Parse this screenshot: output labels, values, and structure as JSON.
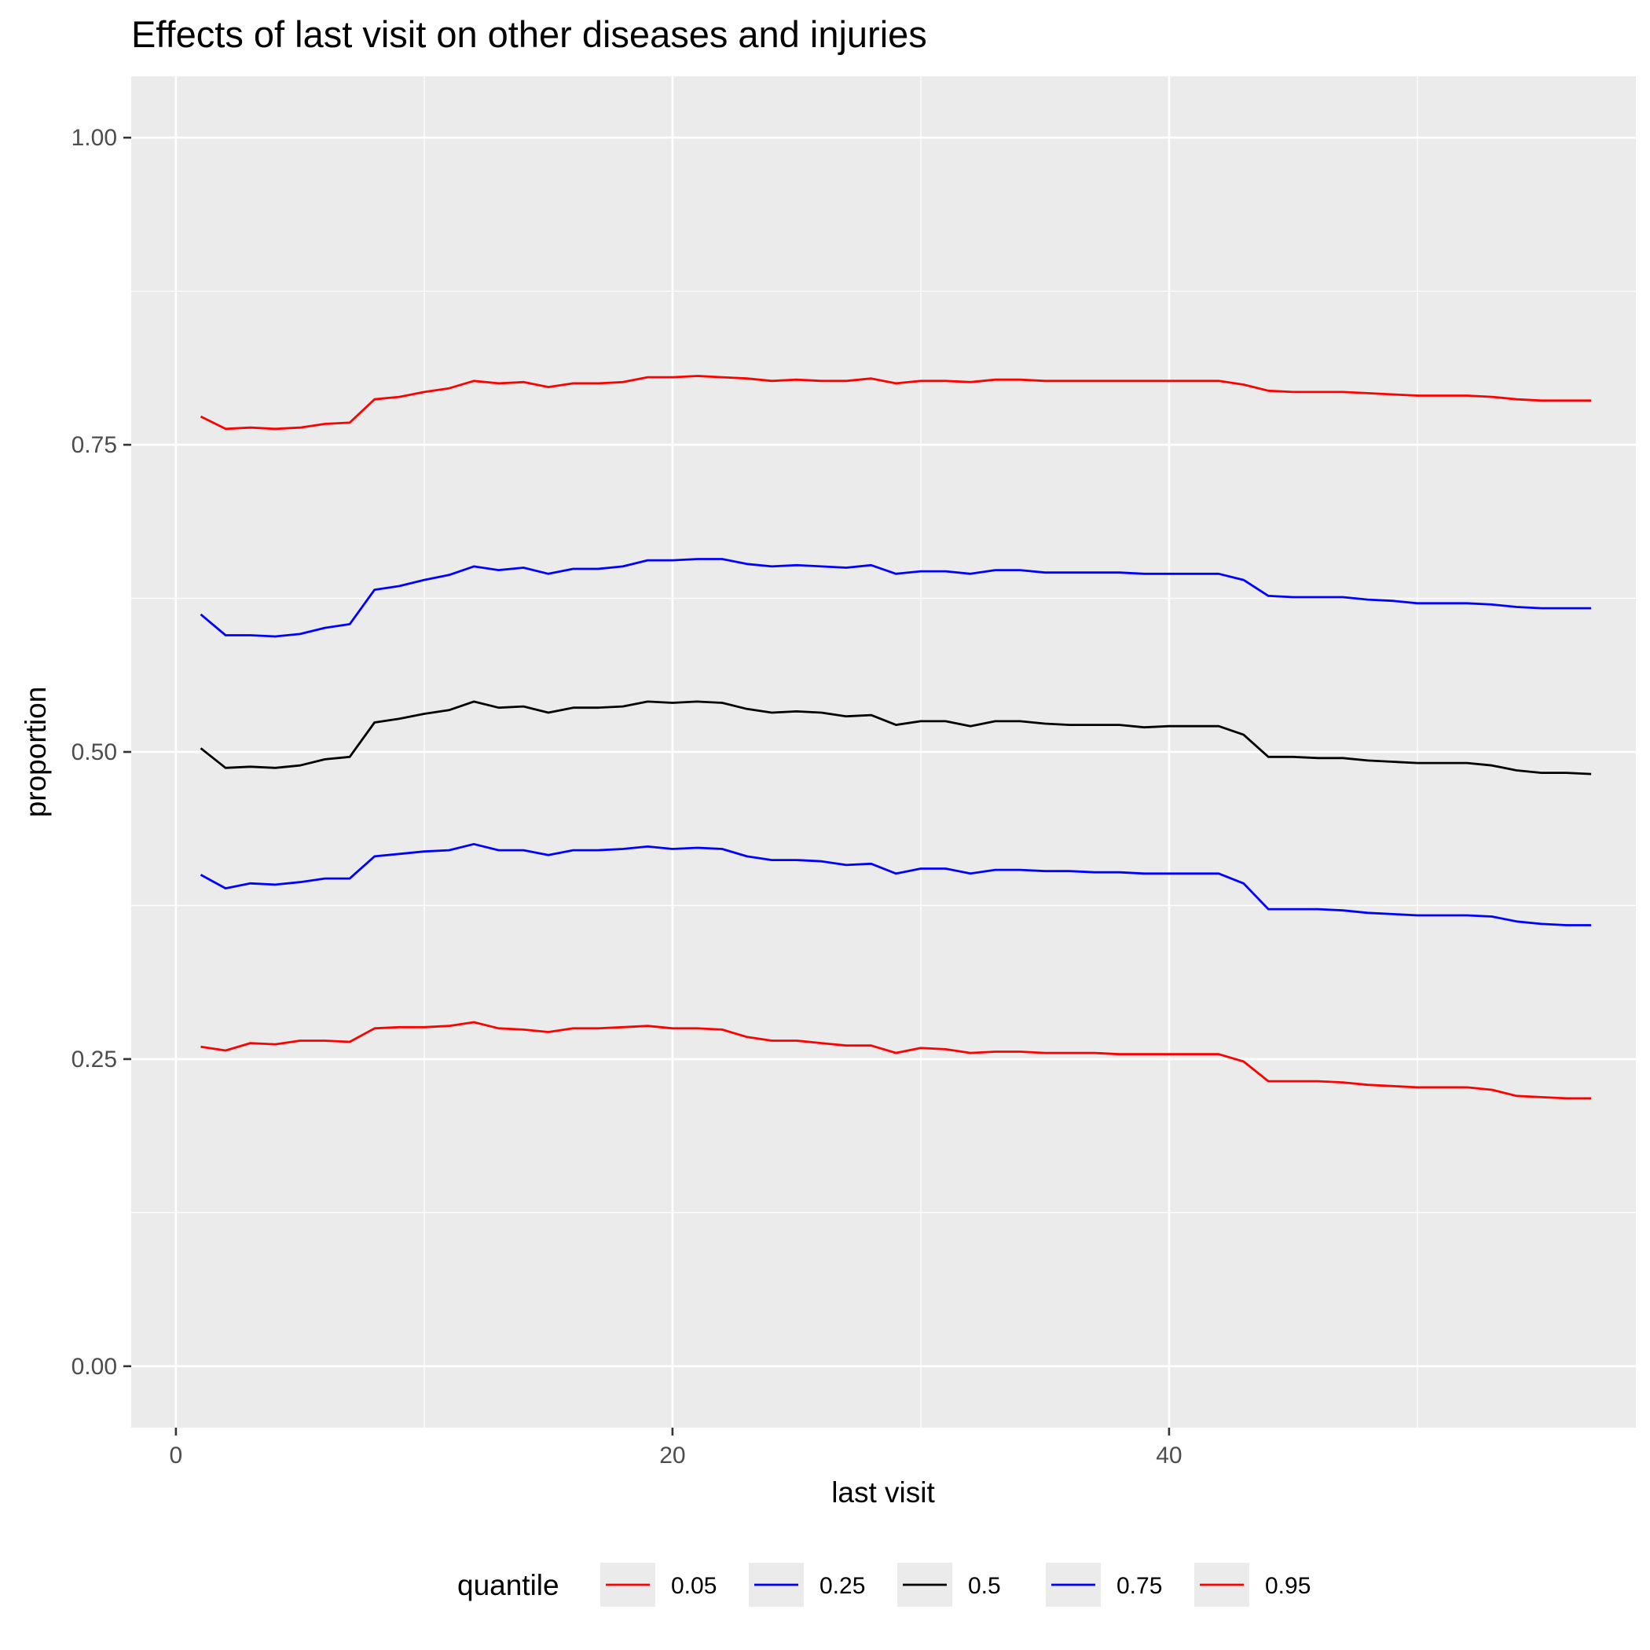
{
  "chart_data": {
    "type": "line",
    "title": "Effects of last visit on other diseases and injuries",
    "xlabel": "last visit",
    "ylabel": "proportion",
    "xlim": [
      -1.8,
      58.8
    ],
    "ylim": [
      -0.05,
      1.05
    ],
    "x_ticks": [
      0,
      20,
      40
    ],
    "x_tick_labels": [
      "0",
      "20",
      "40"
    ],
    "x_minor_ticks": [
      10,
      30,
      50
    ],
    "y_ticks": [
      0,
      0.25,
      0.5,
      0.75,
      1.0
    ],
    "y_tick_labels": [
      "0.00",
      "0.25",
      "0.50",
      "0.75",
      "1.00"
    ],
    "y_minor_ticks": [
      0.125,
      0.375,
      0.625,
      0.875
    ],
    "grid": true,
    "legend": {
      "title": "quantile",
      "position": "bottom"
    },
    "x": [
      1,
      2,
      3,
      4,
      5,
      6,
      7,
      8,
      9,
      10,
      11,
      12,
      13,
      14,
      15,
      16,
      17,
      18,
      19,
      20,
      21,
      22,
      23,
      24,
      25,
      26,
      27,
      28,
      29,
      30,
      31,
      32,
      33,
      34,
      35,
      36,
      37,
      38,
      39,
      40,
      41,
      42,
      43,
      44,
      45,
      46,
      47,
      48,
      49,
      50,
      51,
      52,
      53,
      54,
      55,
      56,
      57
    ],
    "series": [
      {
        "name": "0.05",
        "color": "#ff0000",
        "values": [
          0.26,
          0.257,
          0.263,
          0.262,
          0.265,
          0.265,
          0.264,
          0.275,
          0.276,
          0.276,
          0.277,
          0.28,
          0.275,
          0.274,
          0.272,
          0.275,
          0.275,
          0.276,
          0.277,
          0.275,
          0.275,
          0.274,
          0.268,
          0.265,
          0.265,
          0.263,
          0.261,
          0.261,
          0.255,
          0.259,
          0.258,
          0.255,
          0.256,
          0.256,
          0.255,
          0.255,
          0.255,
          0.254,
          0.254,
          0.254,
          0.254,
          0.254,
          0.248,
          0.232,
          0.232,
          0.232,
          0.231,
          0.229,
          0.228,
          0.227,
          0.227,
          0.227,
          0.225,
          0.22,
          0.219,
          0.218,
          0.218
        ]
      },
      {
        "name": "0.25",
        "color": "#0000ff",
        "values": [
          0.4,
          0.389,
          0.393,
          0.392,
          0.394,
          0.397,
          0.397,
          0.415,
          0.417,
          0.419,
          0.42,
          0.425,
          0.42,
          0.42,
          0.416,
          0.42,
          0.42,
          0.421,
          0.423,
          0.421,
          0.422,
          0.421,
          0.415,
          0.412,
          0.412,
          0.411,
          0.408,
          0.409,
          0.401,
          0.405,
          0.405,
          0.401,
          0.404,
          0.404,
          0.403,
          0.403,
          0.402,
          0.402,
          0.401,
          0.401,
          0.401,
          0.401,
          0.393,
          0.372,
          0.372,
          0.372,
          0.371,
          0.369,
          0.368,
          0.367,
          0.367,
          0.367,
          0.366,
          0.362,
          0.36,
          0.359,
          0.359
        ]
      },
      {
        "name": "0.5",
        "color": "#000000",
        "values": [
          0.503,
          0.487,
          0.488,
          0.487,
          0.489,
          0.494,
          0.496,
          0.524,
          0.527,
          0.531,
          0.534,
          0.541,
          0.536,
          0.537,
          0.532,
          0.536,
          0.536,
          0.537,
          0.541,
          0.54,
          0.541,
          0.54,
          0.535,
          0.532,
          0.533,
          0.532,
          0.529,
          0.53,
          0.522,
          0.525,
          0.525,
          0.521,
          0.525,
          0.525,
          0.523,
          0.522,
          0.522,
          0.522,
          0.52,
          0.521,
          0.521,
          0.521,
          0.514,
          0.496,
          0.496,
          0.495,
          0.495,
          0.493,
          0.492,
          0.491,
          0.491,
          0.491,
          0.489,
          0.485,
          0.483,
          0.483,
          0.482
        ]
      },
      {
        "name": "0.75",
        "color": "#0000ff",
        "values": [
          0.612,
          0.595,
          0.595,
          0.594,
          0.596,
          0.601,
          0.604,
          0.632,
          0.635,
          0.64,
          0.644,
          0.651,
          0.648,
          0.65,
          0.645,
          0.649,
          0.649,
          0.651,
          0.656,
          0.656,
          0.657,
          0.657,
          0.653,
          0.651,
          0.652,
          0.651,
          0.65,
          0.652,
          0.645,
          0.647,
          0.647,
          0.645,
          0.648,
          0.648,
          0.646,
          0.646,
          0.646,
          0.646,
          0.645,
          0.645,
          0.645,
          0.645,
          0.64,
          0.627,
          0.626,
          0.626,
          0.626,
          0.624,
          0.623,
          0.621,
          0.621,
          0.621,
          0.62,
          0.618,
          0.617,
          0.617,
          0.617
        ]
      },
      {
        "name": "0.95",
        "color": "#ff0000",
        "values": [
          0.773,
          0.763,
          0.764,
          0.763,
          0.764,
          0.767,
          0.768,
          0.787,
          0.789,
          0.793,
          0.796,
          0.802,
          0.8,
          0.801,
          0.797,
          0.8,
          0.8,
          0.801,
          0.805,
          0.805,
          0.806,
          0.805,
          0.804,
          0.802,
          0.803,
          0.802,
          0.802,
          0.804,
          0.8,
          0.802,
          0.802,
          0.801,
          0.803,
          0.803,
          0.802,
          0.802,
          0.802,
          0.802,
          0.802,
          0.802,
          0.802,
          0.802,
          0.799,
          0.794,
          0.793,
          0.793,
          0.793,
          0.792,
          0.791,
          0.79,
          0.79,
          0.79,
          0.789,
          0.787,
          0.786,
          0.786,
          0.786
        ]
      }
    ]
  }
}
